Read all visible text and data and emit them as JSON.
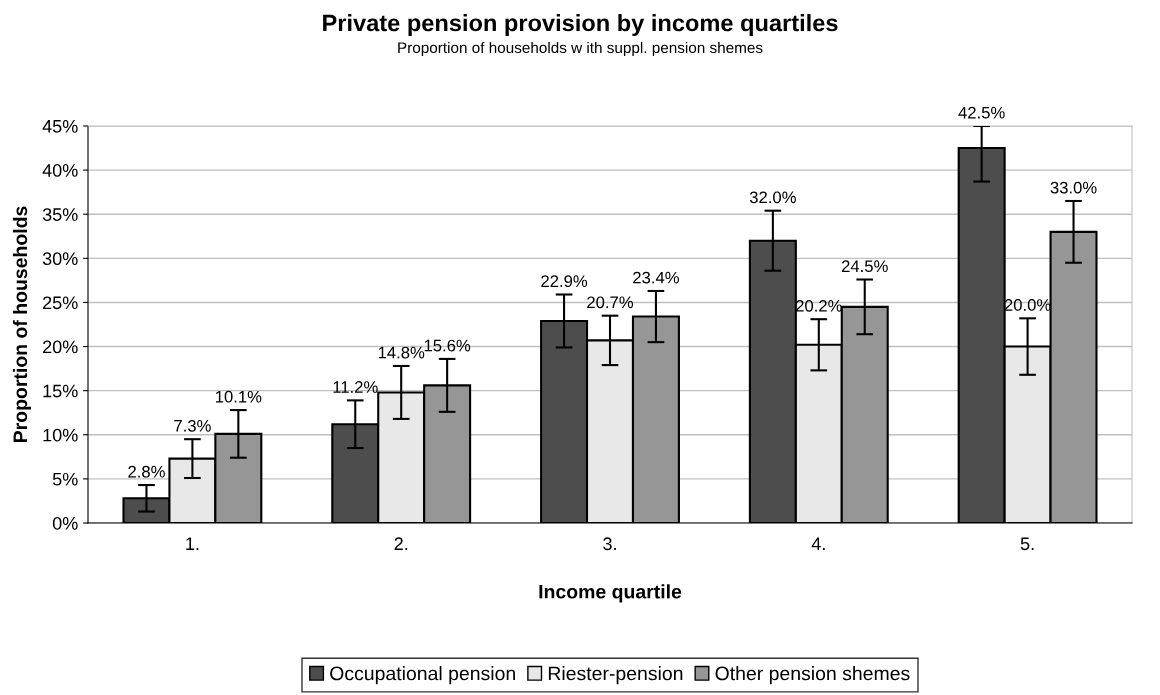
{
  "chart_data": {
    "type": "bar",
    "title": "Private pension provision by income quartiles",
    "subtitle": "Proportion of households w ith suppl. pension shemes",
    "xlabel": "Income quartile",
    "ylabel": "Proportion of households",
    "categories": [
      "1.",
      "2.",
      "3.",
      "4.",
      "5."
    ],
    "series": [
      {
        "name": "Occupational pension",
        "color": "#4d4d4d",
        "values": [
          2.8,
          11.2,
          22.9,
          32.0,
          42.5
        ],
        "errors": [
          1.5,
          2.7,
          3.0,
          3.4,
          [
            38.7,
            45.0
          ]
        ],
        "value_labels": [
          "2.8%",
          "11.2%",
          "22.9%",
          "32.0%",
          "42.5%"
        ]
      },
      {
        "name": "Riester-pension",
        "color": "#e8e8e8",
        "values": [
          7.3,
          14.8,
          20.7,
          20.2,
          20.0
        ],
        "errors": [
          2.2,
          3.0,
          2.8,
          2.9,
          3.2
        ],
        "value_labels": [
          "7.3%",
          "14.8%",
          "20.7%",
          "20.2%",
          "20.0%"
        ]
      },
      {
        "name": "Other pension shemes",
        "color": "#969696",
        "values": [
          10.1,
          15.6,
          23.4,
          24.5,
          33.0
        ],
        "errors": [
          2.7,
          3.0,
          2.9,
          3.1,
          3.5
        ],
        "value_labels": [
          "10.1%",
          "15.6%",
          "23.4%",
          "24.5%",
          "33.0%"
        ]
      }
    ],
    "ylim": [
      0,
      45
    ],
    "yticks": [
      {
        "value": 0,
        "label": "0%"
      },
      {
        "value": 5,
        "label": "5%"
      },
      {
        "value": 10,
        "label": "10%"
      },
      {
        "value": 15,
        "label": "15%"
      },
      {
        "value": 20,
        "label": "20%"
      },
      {
        "value": 25,
        "label": "25%"
      },
      {
        "value": 30,
        "label": "30%"
      },
      {
        "value": 35,
        "label": "35%"
      },
      {
        "value": 40,
        "label": "40%"
      },
      {
        "value": 45,
        "label": "45%"
      }
    ],
    "grid": "y",
    "legend": "bottom"
  }
}
